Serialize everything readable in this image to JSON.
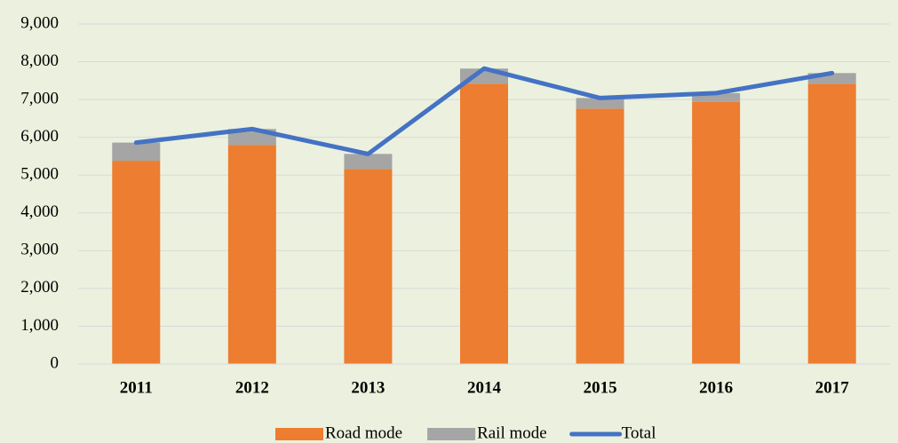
{
  "chart_data": {
    "type": "bar",
    "categories": [
      "2011",
      "2012",
      "2013",
      "2014",
      "2015",
      "2016",
      "2017"
    ],
    "series": [
      {
        "name": "Road mode",
        "type": "bar",
        "color": "#ed7d31",
        "values": [
          5380,
          5800,
          5160,
          7420,
          6760,
          6940,
          7420
        ]
      },
      {
        "name": "Rail mode",
        "type": "bar",
        "color": "#a5a5a5",
        "values": [
          480,
          420,
          400,
          400,
          280,
          230,
          280
        ]
      },
      {
        "name": "Total",
        "type": "line",
        "color": "#4472c4",
        "values": [
          5860,
          6220,
          5560,
          7820,
          7040,
          7170,
          7700
        ]
      }
    ],
    "stacked": true,
    "ylim": [
      0,
      9000
    ],
    "yticks": [
      0,
      {
        "value": 1000,
        "label": "1,000"
      },
      {
        "value": 2000,
        "label": "2,000"
      },
      {
        "value": 3000,
        "label": "3,000"
      },
      {
        "value": 4000,
        "label": "4,000"
      },
      {
        "value": 5000,
        "label": "5,000"
      },
      {
        "value": 6000,
        "label": "6,000"
      },
      {
        "value": 7000,
        "label": "7,000"
      },
      {
        "value": 8000,
        "label": "8,000"
      },
      {
        "value": 9000,
        "label": "9,000"
      }
    ],
    "grid": true,
    "legend": "bottom"
  }
}
